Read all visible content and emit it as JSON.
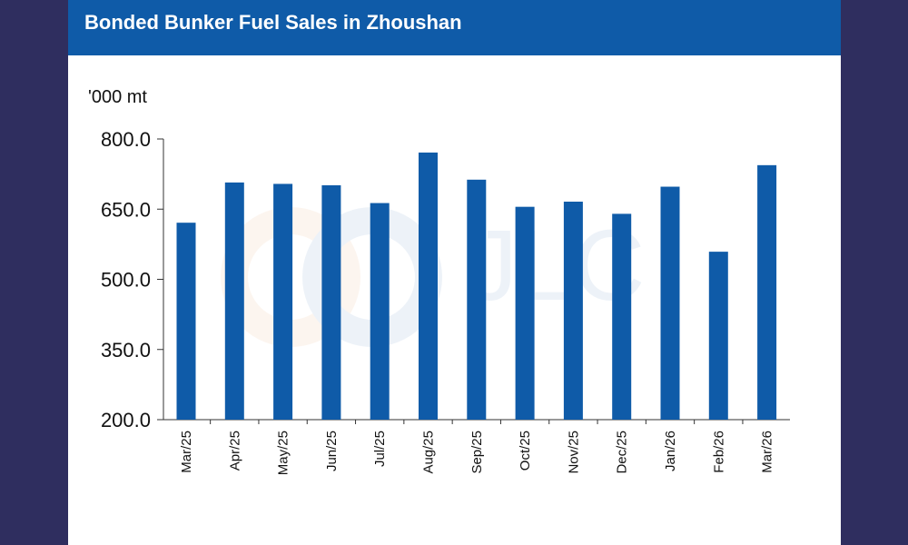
{
  "colors": {
    "background": "#2f2e5f",
    "header": "#0f5ba8",
    "bar": "#0f5ba8"
  },
  "chart_data": {
    "type": "bar",
    "title": "Bonded Bunker Fuel Sales in Zhoushan",
    "ylabel": "'000 mt",
    "xlabel": "",
    "categories": [
      "Mar/25",
      "Apr/25",
      "May/25",
      "Jun/25",
      "Jul/25",
      "Aug/25",
      "Sep/25",
      "Oct/25",
      "Nov/25",
      "Dec/25",
      "Jan/26",
      "Feb/26",
      "Mar/26"
    ],
    "values": [
      621,
      707,
      704,
      701,
      663,
      771,
      713,
      655,
      666,
      640,
      698,
      559,
      744
    ],
    "ylim": [
      200,
      800
    ],
    "yticks": [
      "200.0",
      "350.0",
      "500.0",
      "650.0",
      "800.0"
    ],
    "grid": false,
    "legend": "none"
  }
}
